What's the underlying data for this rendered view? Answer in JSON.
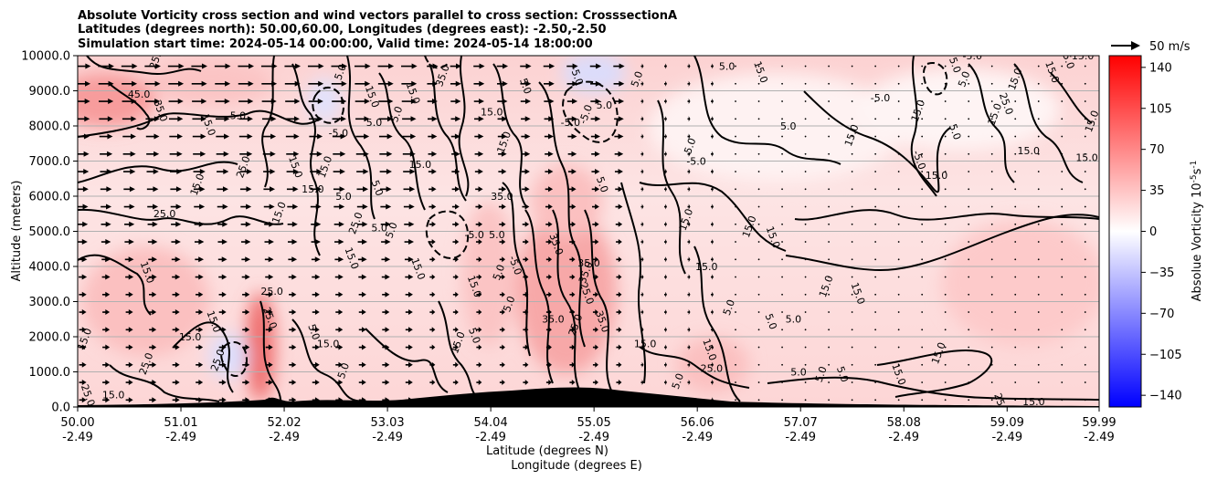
{
  "chart_data": {
    "type": "heatmap",
    "title_lines": [
      "Absolute Vorticity cross section and wind vectors parallel to cross section: CrosssectionA",
      "Latitudes (degrees north): 50.00,60.00, Longitudes (degrees east): -2.50,-2.50",
      "Simulation start time: 2024-05-14 00:00:00, Valid time: 2024-05-14 18:00:00"
    ],
    "xlabel_lines": [
      "Latitude (degrees N)",
      "Longitude (degrees E)"
    ],
    "ylabel": "Altitude (meters)",
    "x_ticks": [
      {
        "lat": "50.00",
        "lon": "-2.49"
      },
      {
        "lat": "51.01",
        "lon": "-2.49"
      },
      {
        "lat": "52.02",
        "lon": "-2.49"
      },
      {
        "lat": "53.03",
        "lon": "-2.49"
      },
      {
        "lat": "54.04",
        "lon": "-2.49"
      },
      {
        "lat": "55.05",
        "lon": "-2.49"
      },
      {
        "lat": "56.06",
        "lon": "-2.49"
      },
      {
        "lat": "57.07",
        "lon": "-2.49"
      },
      {
        "lat": "58.08",
        "lon": "-2.49"
      },
      {
        "lat": "59.09",
        "lon": "-2.49"
      },
      {
        "lat": "59.99",
        "lon": "-2.49"
      }
    ],
    "y_ticks": [
      "0.0",
      "1000.0",
      "2000.0",
      "3000.0",
      "4000.0",
      "5000.0",
      "6000.0",
      "7000.0",
      "8000.0",
      "9000.0",
      "10000.0"
    ],
    "xlim": [
      50.0,
      59.99
    ],
    "ylim": [
      0,
      10000
    ],
    "grid": "horizontal",
    "colorbar": {
      "label": "Absolue Vorticity 10",
      "label_exp": "-5",
      "label_unit": "s",
      "label_unit_exp": "-1",
      "ticks": [
        "140",
        "105",
        "70",
        "35",
        "0",
        "−35",
        "−70",
        "−105",
        "−140"
      ],
      "range": [
        -150,
        150
      ],
      "colormap": [
        "#0000ff",
        "#ffffff",
        "#ff0000"
      ]
    },
    "wind_key": {
      "label": "50 m/s"
    },
    "contour_levels": [
      -5,
      5,
      15,
      25,
      35,
      45
    ],
    "contour_labels": [
      {
        "text": "15.0",
        "lat": 50.1,
        "alt": 1900
      },
      {
        "text": "25.0",
        "lat": 50.07,
        "alt": 300
      },
      {
        "text": "15.0",
        "lat": 50.35,
        "alt": 250
      },
      {
        "text": "25.0",
        "lat": 50.7,
        "alt": 1200
      },
      {
        "text": "15.0",
        "lat": 50.65,
        "alt": 3800
      },
      {
        "text": "25.0",
        "lat": 50.85,
        "alt": 5400
      },
      {
        "text": "15.0",
        "lat": 51.2,
        "alt": 6300
      },
      {
        "text": "35.0",
        "lat": 50.78,
        "alt": 8400
      },
      {
        "text": "45.0",
        "lat": 50.6,
        "alt": 8800
      },
      {
        "text": "25.0",
        "lat": 50.8,
        "alt": 9900
      },
      {
        "text": "15.0",
        "lat": 51.25,
        "alt": 8000
      },
      {
        "text": "-5.0",
        "lat": 51.55,
        "alt": 8200
      },
      {
        "text": "25.0",
        "lat": 51.65,
        "alt": 6800
      },
      {
        "text": "15.0",
        "lat": 51.3,
        "alt": 2400
      },
      {
        "text": "15.0",
        "lat": 51.1,
        "alt": 1900
      },
      {
        "text": "25.0",
        "lat": 51.4,
        "alt": 1300
      },
      {
        "text": "25.0",
        "lat": 51.85,
        "alt": 2500
      },
      {
        "text": "25.0",
        "lat": 51.9,
        "alt": 3200
      },
      {
        "text": "15.0",
        "lat": 52.0,
        "alt": 5500
      },
      {
        "text": "15.0",
        "lat": 52.1,
        "alt": 6800
      },
      {
        "text": "15.0",
        "lat": 52.3,
        "alt": 6100
      },
      {
        "text": "15.0",
        "lat": 52.45,
        "alt": 6800
      },
      {
        "text": "5.0",
        "lat": 52.28,
        "alt": 2100
      },
      {
        "text": "15.0",
        "lat": 52.45,
        "alt": 1700
      },
      {
        "text": "5.0",
        "lat": 52.63,
        "alt": 1000
      },
      {
        "text": "15.0",
        "lat": 52.65,
        "alt": 4200
      },
      {
        "text": "5.0",
        "lat": 52.6,
        "alt": 5900
      },
      {
        "text": "25.0",
        "lat": 52.75,
        "alt": 5200
      },
      {
        "text": "5.0",
        "lat": 52.9,
        "alt": 6200
      },
      {
        "text": "5.0",
        "lat": 52.95,
        "alt": 5000
      },
      {
        "text": "5.0",
        "lat": 53.1,
        "alt": 5000
      },
      {
        "text": "15.0",
        "lat": 53.3,
        "alt": 3900
      },
      {
        "text": "15.0",
        "lat": 53.35,
        "alt": 6800
      },
      {
        "text": "5.0",
        "lat": 52.6,
        "alt": 9500
      },
      {
        "text": "15.0",
        "lat": 52.85,
        "alt": 8800
      },
      {
        "text": "5.0",
        "lat": 52.9,
        "alt": 8000
      },
      {
        "text": "5.0",
        "lat": 53.15,
        "alt": 8300
      },
      {
        "text": "15.0",
        "lat": 53.25,
        "alt": 8900
      },
      {
        "text": "-5.0",
        "lat": 52.55,
        "alt": 7700
      },
      {
        "text": "35.0",
        "lat": 53.6,
        "alt": 9400
      },
      {
        "text": "15.0",
        "lat": 53.85,
        "alt": 3400
      },
      {
        "text": "-5.0",
        "lat": 53.88,
        "alt": 4800
      },
      {
        "text": "15.0",
        "lat": 53.75,
        "alt": 1800
      },
      {
        "text": "5.0",
        "lat": 53.85,
        "alt": 2000
      },
      {
        "text": "5.0",
        "lat": 54.1,
        "alt": 4800
      },
      {
        "text": "5.0",
        "lat": 54.15,
        "alt": 3800
      },
      {
        "text": "-5.0",
        "lat": 54.25,
        "alt": 4000
      },
      {
        "text": "35.0",
        "lat": 54.15,
        "alt": 5900
      },
      {
        "text": "15.0",
        "lat": 54.2,
        "alt": 7500
      },
      {
        "text": "5.0",
        "lat": 54.35,
        "alt": 9100
      },
      {
        "text": "15.0",
        "lat": 54.05,
        "alt": 8300
      },
      {
        "text": "5.0",
        "lat": 54.25,
        "alt": 2900
      },
      {
        "text": "35.0",
        "lat": 54.65,
        "alt": 4600
      },
      {
        "text": "35.0",
        "lat": 55.0,
        "alt": 4000
      },
      {
        "text": "35.0",
        "lat": 55.0,
        "alt": 3800
      },
      {
        "text": "25.0",
        "lat": 54.95,
        "alt": 3200
      },
      {
        "text": "35.0",
        "lat": 54.65,
        "alt": 2400
      },
      {
        "text": "25.0",
        "lat": 54.9,
        "alt": 2300
      },
      {
        "text": "35.0",
        "lat": 55.1,
        "alt": 2400
      },
      {
        "text": "-5.0",
        "lat": 54.82,
        "alt": 8000
      },
      {
        "text": "-5.0",
        "lat": 55.0,
        "alt": 8300
      },
      {
        "text": "-5.0",
        "lat": 54.85,
        "alt": 9400
      },
      {
        "text": "5.0",
        "lat": 55.15,
        "alt": 8500
      },
      {
        "text": "5.0",
        "lat": 55.5,
        "alt": 9300
      },
      {
        "text": "5.0",
        "lat": 55.1,
        "alt": 6300
      },
      {
        "text": "15.0",
        "lat": 55.55,
        "alt": 1700
      },
      {
        "text": "15.0",
        "lat": 55.98,
        "alt": 5300
      },
      {
        "text": "15.0",
        "lat": 56.15,
        "alt": 1600
      },
      {
        "text": "-5.0",
        "lat": 56.05,
        "alt": 6900
      },
      {
        "text": "5.0",
        "lat": 56.02,
        "alt": 7400
      },
      {
        "text": "15.0",
        "lat": 56.65,
        "alt": 9500
      },
      {
        "text": "5.0",
        "lat": 56.35,
        "alt": 9600
      },
      {
        "text": "15.0",
        "lat": 56.6,
        "alt": 5100
      },
      {
        "text": "15.0",
        "lat": 56.77,
        "alt": 4800
      },
      {
        "text": "15.0",
        "lat": 56.15,
        "alt": 3900
      },
      {
        "text": "5.0",
        "lat": 56.4,
        "alt": 2800
      },
      {
        "text": "5.0",
        "lat": 56.75,
        "alt": 2400
      },
      {
        "text": "5.0",
        "lat": 57.0,
        "alt": 2400
      },
      {
        "text": "15.0",
        "lat": 57.35,
        "alt": 3400
      },
      {
        "text": "15.0",
        "lat": 57.6,
        "alt": 3200
      },
      {
        "text": "5.0",
        "lat": 56.95,
        "alt": 7900
      },
      {
        "text": "15.0",
        "lat": 57.6,
        "alt": 7700
      },
      {
        "text": "-5.0",
        "lat": 58.2,
        "alt": 7000
      },
      {
        "text": "-5.0",
        "lat": 57.85,
        "alt": 8700
      },
      {
        "text": "15.0",
        "lat": 58.25,
        "alt": 8400
      },
      {
        "text": "5.0",
        "lat": 58.55,
        "alt": 7800
      },
      {
        "text": "15.0",
        "lat": 58.4,
        "alt": 6500
      },
      {
        "text": "15.0",
        "lat": 59.0,
        "alt": 8300
      },
      {
        "text": "25.0",
        "lat": 59.05,
        "alt": 8600
      },
      {
        "text": "15.0",
        "lat": 59.3,
        "alt": 7200
      },
      {
        "text": "15.0",
        "lat": 59.2,
        "alt": 9300
      },
      {
        "text": "15.0",
        "lat": 59.5,
        "alt": 9500
      },
      {
        "text": "15.0",
        "lat": 59.87,
        "alt": 7000
      },
      {
        "text": "15.0",
        "lat": 59.95,
        "alt": 8100
      },
      {
        "text": "15.0",
        "lat": 59.65,
        "alt": 9900
      },
      {
        "text": "15.0",
        "lat": 59.83,
        "alt": 9900
      },
      {
        "text": "5.0",
        "lat": 58.7,
        "alt": 9300
      },
      {
        "text": "5.0",
        "lat": 58.55,
        "alt": 9700
      },
      {
        "text": "-5.0",
        "lat": 58.75,
        "alt": 9900
      },
      {
        "text": "15.0",
        "lat": 58.45,
        "alt": 1500
      },
      {
        "text": "15.0",
        "lat": 58.0,
        "alt": 900
      },
      {
        "text": "5.0",
        "lat": 57.05,
        "alt": 900
      },
      {
        "text": "5.0",
        "lat": 57.3,
        "alt": 900
      },
      {
        "text": "5.0",
        "lat": 57.45,
        "alt": 900
      },
      {
        "text": "25.0",
        "lat": 56.2,
        "alt": 1000
      },
      {
        "text": "5.0",
        "lat": 55.9,
        "alt": 700
      },
      {
        "text": "25.0",
        "lat": 59.0,
        "alt": 50
      },
      {
        "text": "15.0",
        "lat": 59.35,
        "alt": 50
      }
    ]
  }
}
